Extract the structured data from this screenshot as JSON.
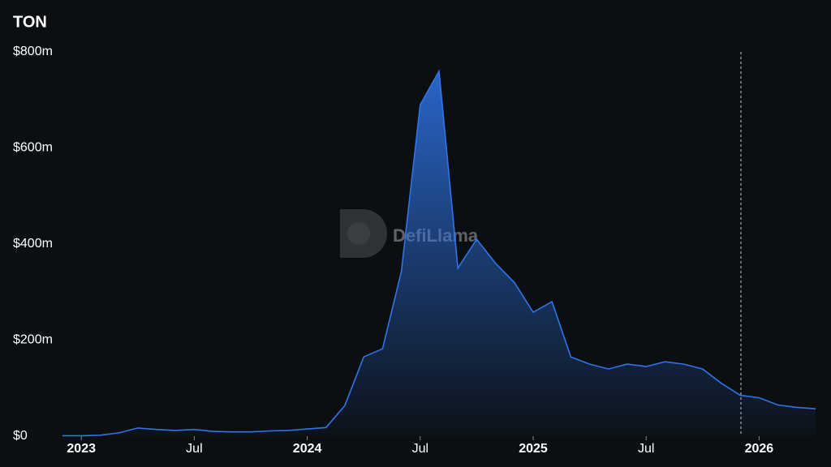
{
  "chart_data": {
    "type": "area",
    "title": "TON",
    "watermark": "DefiLlama",
    "color": "#2f74e8",
    "x": [
      "2022-12",
      "2023-01",
      "2023-02",
      "2023-03",
      "2023-04",
      "2023-05",
      "2023-06",
      "2023-07",
      "2023-08",
      "2023-09",
      "2023-10",
      "2023-11",
      "2023-12",
      "2024-01",
      "2024-02",
      "2024-03",
      "2024-04",
      "2024-05",
      "2024-06",
      "2024-07",
      "2024-08",
      "2024-09",
      "2024-10",
      "2024-11",
      "2024-12",
      "2025-01",
      "2025-02",
      "2025-03",
      "2025-04",
      "2025-05",
      "2025-06",
      "2025-07",
      "2025-08",
      "2025-09",
      "2025-10",
      "2025-11",
      "2025-12",
      "2026-01",
      "2026-02",
      "2026-03",
      "2026-04"
    ],
    "values": [
      1,
      1,
      2,
      7,
      17,
      14,
      12,
      14,
      10,
      9,
      9,
      11,
      12,
      15,
      18,
      64,
      165,
      182,
      343,
      690,
      760,
      350,
      410,
      360,
      320,
      258,
      280,
      165,
      150,
      140,
      150,
      145,
      155,
      150,
      140,
      110,
      85,
      80,
      65,
      60,
      57
    ],
    "xlim": [
      "2022-12",
      "2026-04"
    ],
    "xticks": [
      {
        "value": "2023-01",
        "label": "2023"
      },
      {
        "value": "2023-07",
        "label": "Jul"
      },
      {
        "value": "2024-01",
        "label": "2024"
      },
      {
        "value": "2024-07",
        "label": "Jul"
      },
      {
        "value": "2025-01",
        "label": "2025"
      },
      {
        "value": "2025-07",
        "label": "Jul"
      },
      {
        "value": "2026-01",
        "label": "2026"
      }
    ],
    "ylim": [
      0,
      800
    ],
    "yticks": [
      {
        "value": 0,
        "label": "$0"
      },
      {
        "value": 200,
        "label": "$200m"
      },
      {
        "value": 400,
        "label": "$400m"
      },
      {
        "value": 600,
        "label": "$600m"
      },
      {
        "value": 800,
        "label": "$800m"
      }
    ],
    "grid": false
  }
}
